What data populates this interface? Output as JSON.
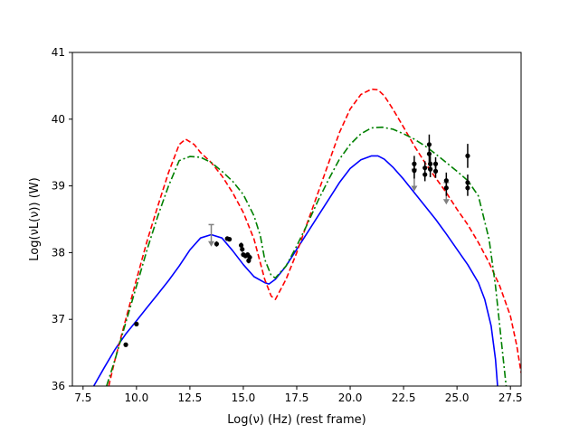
{
  "chart_data": {
    "type": "line",
    "title": "",
    "xlabel": "Log(ν) (Hz) (rest frame)",
    "ylabel": "Log(νL(ν)) (W)",
    "xlim": [
      7.0,
      28.0
    ],
    "ylim": [
      36.0,
      41.0
    ],
    "xticks": [
      7.5,
      10.0,
      12.5,
      15.0,
      17.5,
      20.0,
      22.5,
      25.0,
      27.5
    ],
    "xtick_labels": [
      "7.5",
      "10.0",
      "12.5",
      "15.0",
      "17.5",
      "20.0",
      "22.5",
      "25.0",
      "27.5"
    ],
    "yticks": [
      36,
      37,
      38,
      39,
      40,
      41
    ],
    "ytick_labels": [
      "36",
      "37",
      "38",
      "39",
      "40",
      "41"
    ],
    "grid": false,
    "series": [
      {
        "color": "#0000ff",
        "style": "solid",
        "x": [
          8.0,
          8.5,
          9.0,
          9.5,
          10.0,
          10.5,
          11.0,
          11.5,
          12.0,
          12.5,
          13.0,
          13.5,
          14.0,
          14.5,
          15.0,
          15.5,
          16.0,
          16.2,
          16.5,
          17.0,
          17.5,
          18.0,
          18.5,
          19.0,
          19.5,
          20.0,
          20.5,
          21.0,
          21.3,
          21.6,
          22.0,
          22.5,
          23.0,
          23.5,
          24.0,
          24.5,
          25.0,
          25.5,
          26.0,
          26.3,
          26.6,
          26.8,
          26.9
        ],
        "y": [
          36.0,
          36.28,
          36.55,
          36.78,
          36.98,
          37.18,
          37.38,
          37.58,
          37.8,
          38.04,
          38.22,
          38.27,
          38.22,
          38.03,
          37.82,
          37.64,
          37.55,
          37.53,
          37.6,
          37.8,
          38.05,
          38.3,
          38.55,
          38.8,
          39.05,
          39.26,
          39.39,
          39.45,
          39.45,
          39.4,
          39.28,
          39.1,
          38.9,
          38.7,
          38.5,
          38.28,
          38.05,
          37.82,
          37.55,
          37.3,
          36.9,
          36.4,
          36.0
        ]
      },
      {
        "color": "#ff0000",
        "style": "dashed",
        "x": [
          8.7,
          9.0,
          9.5,
          10.0,
          10.5,
          11.0,
          11.5,
          12.0,
          12.3,
          12.7,
          13.0,
          13.5,
          14.0,
          14.5,
          15.0,
          15.5,
          16.0,
          16.3,
          16.5,
          17.0,
          17.5,
          18.0,
          18.5,
          19.0,
          19.5,
          20.0,
          20.5,
          21.0,
          21.3,
          21.6,
          22.0,
          22.5,
          23.0,
          23.5,
          24.0,
          24.5,
          25.0,
          25.5,
          26.0,
          26.5,
          27.0,
          27.5,
          27.8,
          28.0
        ],
        "y": [
          36.0,
          36.4,
          37.0,
          37.6,
          38.18,
          38.7,
          39.2,
          39.62,
          39.7,
          39.62,
          39.5,
          39.35,
          39.15,
          38.9,
          38.6,
          38.2,
          37.6,
          37.35,
          37.3,
          37.6,
          38.0,
          38.45,
          38.9,
          39.35,
          39.8,
          40.15,
          40.37,
          40.45,
          40.44,
          40.35,
          40.15,
          39.88,
          39.6,
          39.35,
          39.12,
          38.9,
          38.65,
          38.42,
          38.15,
          37.85,
          37.5,
          37.05,
          36.6,
          36.2
        ]
      },
      {
        "color": "#008000",
        "style": "dashdot",
        "x": [
          8.6,
          9.0,
          9.5,
          10.0,
          10.5,
          11.0,
          11.5,
          12.0,
          12.5,
          13.0,
          13.5,
          14.0,
          14.5,
          15.0,
          15.5,
          15.8,
          16.0,
          16.3,
          16.5,
          17.0,
          17.5,
          18.0,
          18.5,
          19.0,
          19.5,
          20.0,
          20.5,
          21.0,
          21.5,
          22.0,
          22.5,
          23.0,
          23.5,
          24.0,
          24.5,
          25.0,
          25.5,
          26.0,
          26.5,
          26.8,
          27.0,
          27.2,
          27.3
        ],
        "y": [
          36.0,
          36.4,
          36.95,
          37.5,
          38.05,
          38.55,
          39.0,
          39.38,
          39.44,
          39.43,
          39.35,
          39.22,
          39.07,
          38.87,
          38.55,
          38.25,
          37.9,
          37.66,
          37.62,
          37.8,
          38.1,
          38.43,
          38.78,
          39.1,
          39.4,
          39.62,
          39.78,
          39.87,
          39.88,
          39.85,
          39.78,
          39.7,
          39.6,
          39.48,
          39.35,
          39.22,
          39.08,
          38.85,
          38.2,
          37.5,
          36.9,
          36.3,
          36.0
        ]
      }
    ],
    "points": {
      "color": "#000000",
      "x": [
        9.5,
        10.0,
        13.75,
        14.25,
        14.35,
        14.9,
        14.95,
        15.0,
        15.1,
        15.2,
        15.3,
        15.25,
        23.0,
        23.0,
        23.5,
        23.5,
        23.7,
        23.7,
        23.75,
        23.75,
        24.0,
        24.0,
        24.5,
        24.5,
        25.5,
        25.5,
        25.5
      ],
      "y": [
        36.62,
        36.93,
        38.13,
        38.21,
        38.2,
        38.11,
        38.05,
        37.97,
        37.95,
        37.97,
        37.93,
        37.88,
        39.33,
        39.23,
        39.27,
        39.17,
        39.62,
        39.48,
        39.33,
        39.25,
        39.33,
        39.22,
        39.08,
        38.97,
        39.45,
        39.05,
        38.97
      ],
      "yerr": [
        0,
        0,
        0.04,
        0.03,
        0.03,
        0.04,
        0.04,
        0.03,
        0.03,
        0.03,
        0.04,
        0.04,
        0.12,
        0.12,
        0.1,
        0.1,
        0.15,
        0.15,
        0.12,
        0.12,
        0.1,
        0.1,
        0.12,
        0.12,
        0.18,
        0.12,
        0.12
      ]
    },
    "upper_limits": {
      "color": "#808080",
      "x": [
        13.5,
        23.0,
        24.5
      ],
      "y": [
        38.42,
        39.25,
        39.05
      ],
      "arrow_length": 0.33
    }
  }
}
